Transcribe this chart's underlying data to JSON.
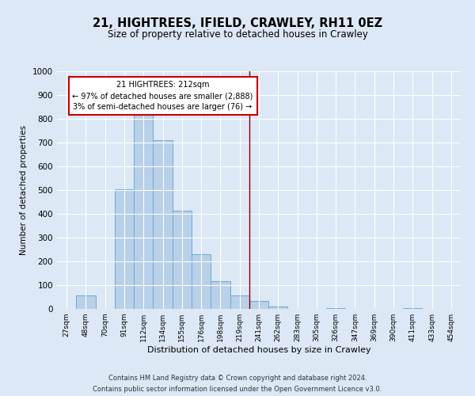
{
  "title": "21, HIGHTREES, IFIELD, CRAWLEY, RH11 0EZ",
  "subtitle": "Size of property relative to detached houses in Crawley",
  "xlabel": "Distribution of detached houses by size in Crawley",
  "ylabel": "Number of detached properties",
  "bar_labels": [
    "27sqm",
    "48sqm",
    "70sqm",
    "91sqm",
    "112sqm",
    "134sqm",
    "155sqm",
    "176sqm",
    "198sqm",
    "219sqm",
    "241sqm",
    "262sqm",
    "283sqm",
    "305sqm",
    "326sqm",
    "347sqm",
    "369sqm",
    "390sqm",
    "411sqm",
    "433sqm",
    "454sqm"
  ],
  "bar_values": [
    0,
    57,
    0,
    505,
    820,
    710,
    415,
    230,
    118,
    58,
    35,
    10,
    0,
    0,
    5,
    0,
    0,
    0,
    3,
    0,
    0
  ],
  "bar_color": "#b8d0e8",
  "bar_edge_color": "#6aaad4",
  "vline_x_index": 9.5,
  "vline_color": "#8b0000",
  "annotation_title": "21 HIGHTREES: 212sqm",
  "annotation_line1": "← 97% of detached houses are smaller (2,888)",
  "annotation_line2": "3% of semi-detached houses are larger (76) →",
  "annotation_box_color": "#ffffff",
  "annotation_box_edge_color": "#cc0000",
  "ylim": [
    0,
    1000
  ],
  "yticks": [
    0,
    100,
    200,
    300,
    400,
    500,
    600,
    700,
    800,
    900,
    1000
  ],
  "footer1": "Contains HM Land Registry data © Crown copyright and database right 2024.",
  "footer2": "Contains public sector information licensed under the Open Government Licence v3.0.",
  "bg_color": "#dce8f5",
  "plot_bg_color": "#dce8f5"
}
